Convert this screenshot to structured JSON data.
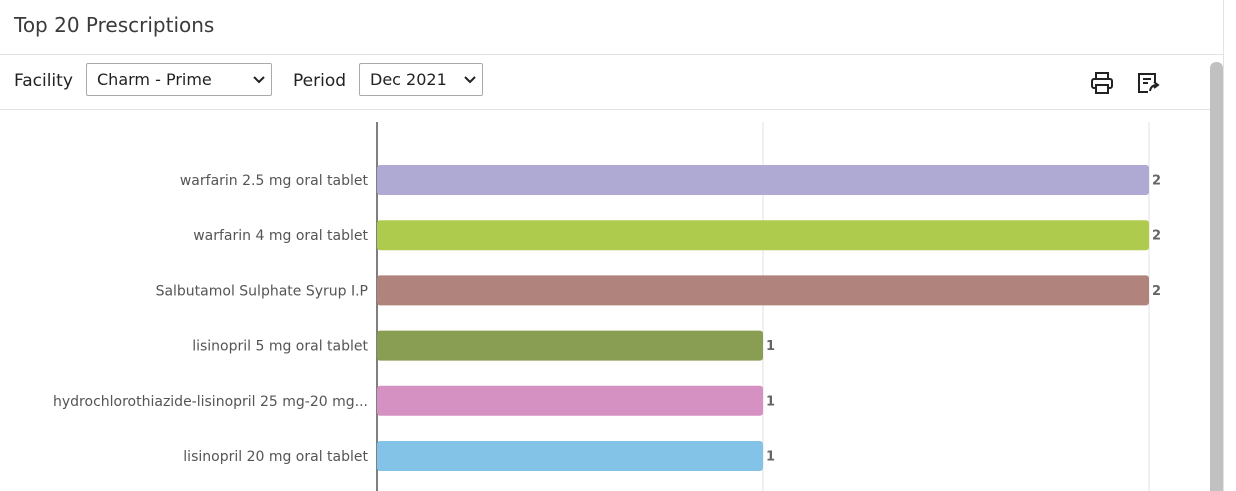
{
  "header": {
    "title": "Top 20 Prescriptions"
  },
  "filters": {
    "facility_label": "Facility",
    "facility_value": "Charm - Prime",
    "period_label": "Period",
    "period_value": "Dec 2021"
  },
  "chart_data": {
    "type": "hbar",
    "categories": [
      "warfarin 2.5 mg oral tablet",
      "warfarin 4 mg oral tablet",
      "Salbutamol Sulphate Syrup I.P",
      "lisinopril 5 mg oral tablet",
      "hydrochlorothiazide-lisinopril 25 mg-20 mg...",
      "lisinopril 20 mg oral tablet"
    ],
    "values": [
      2,
      2,
      2,
      1,
      1,
      1
    ],
    "colors": [
      "#aeaad3",
      "#aecb4d",
      "#b0837d",
      "#8a9e53",
      "#d591c2",
      "#83c3e8"
    ],
    "xlim": [
      0,
      2
    ],
    "xticks": [
      0,
      1,
      2
    ],
    "grid": true
  }
}
